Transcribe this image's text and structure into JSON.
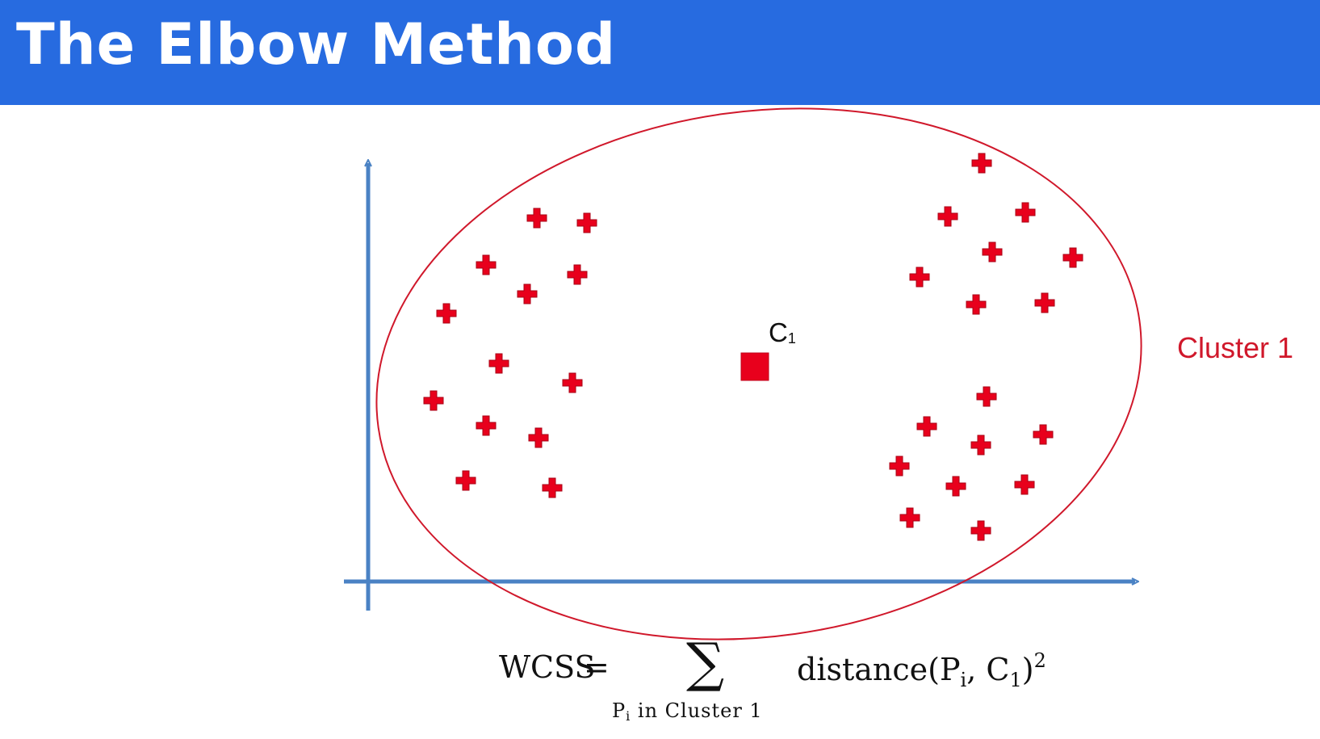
{
  "title": "The Elbow Method",
  "cluster_label": "Cluster 1",
  "centroid_label": {
    "main": "C",
    "sub": "1"
  },
  "formula": {
    "lhs": "WCSS",
    "equals": "=",
    "sum_symbol": "∑",
    "sum_subscript_main": "P",
    "sum_subscript_sub": "i",
    "sum_subscript_rest": " in Cluster 1",
    "rhs_main": "distance(P",
    "rhs_sub1": "i",
    "rhs_mid": ", C",
    "rhs_sub2": "1",
    "rhs_close": ")",
    "rhs_power": "2"
  },
  "colors": {
    "title_bar": "#276be0",
    "axis": "#4a82c4",
    "points": "#e8001c",
    "ellipse": "#d0182b",
    "cluster_label": "#d0182b"
  },
  "icons": {
    "data_point": "plus-marker",
    "centroid": "square-marker"
  }
}
